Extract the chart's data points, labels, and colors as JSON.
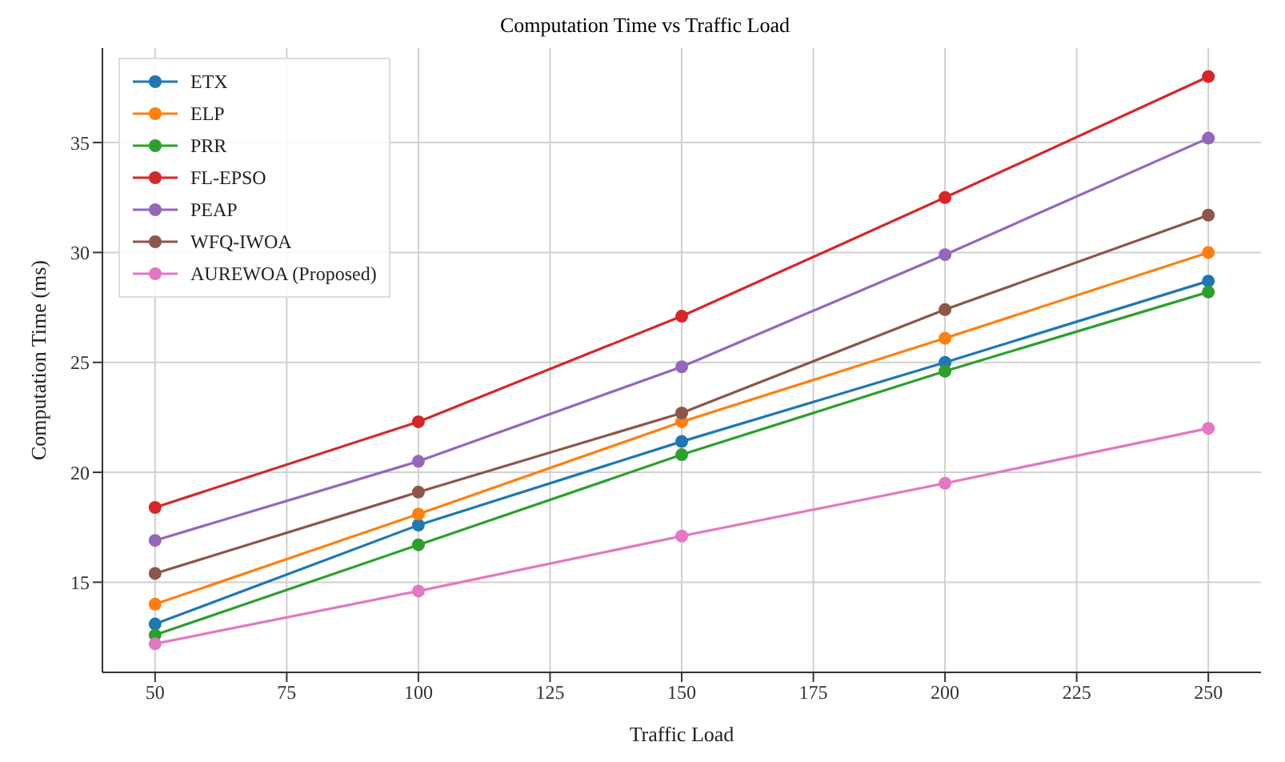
{
  "chart_data": {
    "type": "line",
    "title": "Computation Time vs Traffic Load",
    "xlabel": "Traffic Load",
    "ylabel": "Computation Time (ms)",
    "x": [
      50,
      100,
      150,
      200,
      250
    ],
    "series": [
      {
        "name": "ETX",
        "color": "#1f77b4",
        "values": [
          13.1,
          17.6,
          21.4,
          25.0,
          28.7
        ]
      },
      {
        "name": "ELP",
        "color": "#ff7f0e",
        "values": [
          14.0,
          18.1,
          22.3,
          26.1,
          30.0
        ]
      },
      {
        "name": "PRR",
        "color": "#2ca02c",
        "values": [
          12.6,
          16.7,
          20.8,
          24.6,
          28.2
        ]
      },
      {
        "name": "FL-EPSO",
        "color": "#d62728",
        "values": [
          18.4,
          22.3,
          27.1,
          32.5,
          38.0
        ]
      },
      {
        "name": "PEAP",
        "color": "#9467bd",
        "values": [
          16.9,
          20.5,
          24.8,
          29.9,
          35.2
        ]
      },
      {
        "name": "WFQ-IWOA",
        "color": "#8c564b",
        "values": [
          15.4,
          19.1,
          22.7,
          27.4,
          31.7
        ]
      },
      {
        "name": "AUREWOA (Proposed)",
        "color": "#e377c2",
        "values": [
          12.2,
          14.6,
          17.1,
          19.5,
          22.0
        ]
      }
    ],
    "xlim": [
      40,
      260
    ],
    "xticks": [
      50,
      75,
      100,
      125,
      150,
      175,
      200,
      225,
      250
    ],
    "ylim": [
      10.9,
      39.3
    ],
    "yticks": [
      15,
      20,
      25,
      30,
      35
    ],
    "grid": true,
    "legend": "top left",
    "marker": "circle",
    "line_style": "solid"
  }
}
